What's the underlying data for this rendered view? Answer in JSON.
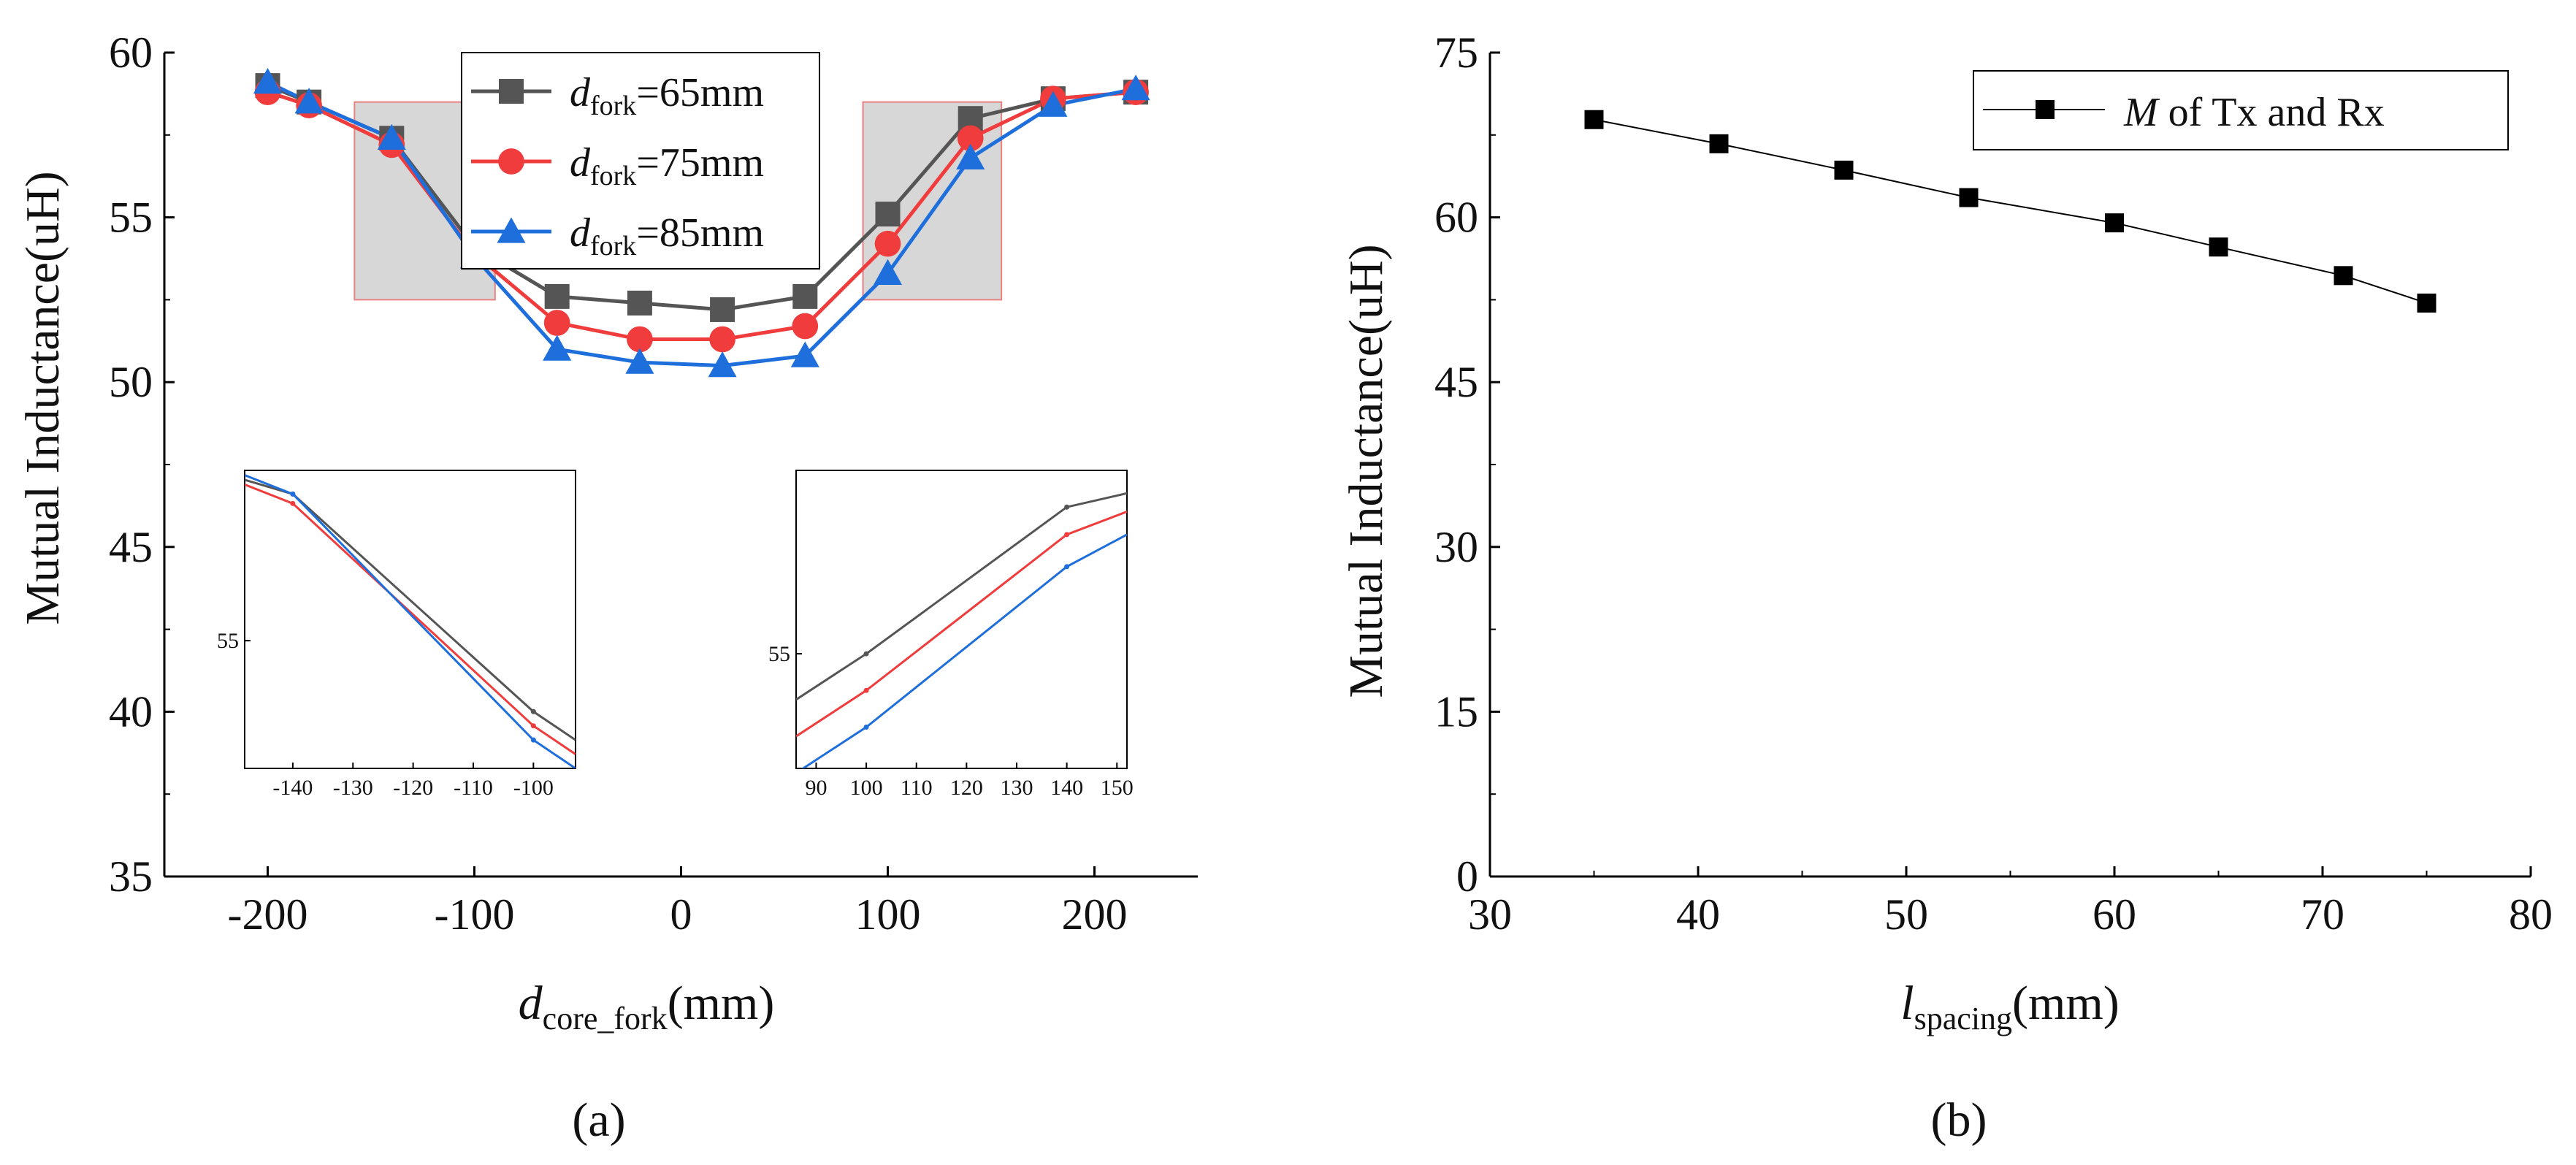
{
  "chart_data": [
    {
      "type": "line",
      "panel_label": "(a)",
      "ylabel": "Mutual Inductance(uH)",
      "xlabel": {
        "base": "d",
        "sub": "core_fork",
        "unit": "(mm)"
      },
      "xlim": [
        -250,
        250
      ],
      "ylim": [
        35,
        60
      ],
      "xticks": [
        -200,
        -100,
        0,
        100,
        200
      ],
      "yticks": [
        35,
        40,
        45,
        50,
        55,
        60
      ],
      "x": [
        -200,
        -180,
        -140,
        -100,
        -60,
        -20,
        20,
        60,
        100,
        140,
        180,
        220
      ],
      "series": [
        {
          "name_base": "d",
          "name_sub": "fork",
          "name_rest": "=65mm",
          "color": "#555555",
          "marker": "square",
          "values": [
            59.0,
            58.5,
            57.4,
            54.1,
            52.6,
            52.4,
            52.2,
            52.6,
            55.1,
            58.0,
            58.6,
            58.8
          ]
        },
        {
          "name_base": "d",
          "name_sub": "fork",
          "name_rest": "=75mm",
          "color": "#f03c3c",
          "marker": "circle",
          "values": [
            58.8,
            58.4,
            57.2,
            53.9,
            51.8,
            51.3,
            51.3,
            51.7,
            54.2,
            57.4,
            58.6,
            58.8
          ]
        },
        {
          "name_base": "d",
          "name_sub": "fork",
          "name_rest": "=85mm",
          "color": "#1e6fdc",
          "marker": "triangle",
          "values": [
            59.1,
            58.5,
            57.4,
            53.8,
            51.0,
            50.6,
            50.5,
            50.8,
            53.3,
            56.8,
            58.4,
            58.9
          ]
        }
      ],
      "highlight_regions": [
        {
          "x": [
            -158,
            -90
          ],
          "y": [
            52.5,
            58.5
          ]
        },
        {
          "x": [
            88,
            155
          ],
          "y": [
            52.5,
            58.5
          ]
        }
      ],
      "insets": [
        {
          "xlim": [
            -148,
            -93
          ],
          "ylim": [
            52.3,
            58.6
          ],
          "xticks": [
            -140,
            -130,
            -120,
            -110,
            -100
          ],
          "ytick": 55,
          "x": [
            -148,
            -140,
            -100,
            -93
          ],
          "series": [
            {
              "color": "#555555",
              "values": [
                58.4,
                58.1,
                53.5,
                52.9
              ]
            },
            {
              "color": "#f03c3c",
              "values": [
                58.3,
                57.9,
                53.2,
                52.6
              ]
            },
            {
              "color": "#1e6fdc",
              "values": [
                58.5,
                58.1,
                52.9,
                52.3
              ]
            }
          ]
        },
        {
          "xlim": [
            86,
            152
          ],
          "ylim": [
            52.5,
            59.0
          ],
          "xticks": [
            90,
            100,
            110,
            120,
            130,
            140,
            150
          ],
          "ytick": 55,
          "x": [
            86,
            100,
            140,
            152
          ],
          "series": [
            {
              "color": "#555555",
              "values": [
                54.0,
                55.0,
                58.2,
                58.5
              ]
            },
            {
              "color": "#f03c3c",
              "values": [
                53.2,
                54.2,
                57.6,
                58.1
              ]
            },
            {
              "color": "#1e6fdc",
              "values": [
                52.4,
                53.4,
                56.9,
                57.6
              ]
            }
          ]
        }
      ]
    },
    {
      "type": "line",
      "panel_label": "(b)",
      "ylabel": "Mutual Inductance(uH)",
      "xlabel": {
        "base": "l",
        "sub": "spacing",
        "unit": "(mm)"
      },
      "xlim": [
        30,
        80
      ],
      "ylim": [
        0,
        75
      ],
      "xticks": [
        30,
        40,
        50,
        60,
        70,
        80
      ],
      "yticks": [
        0,
        15,
        30,
        45,
        60,
        75
      ],
      "x": [
        35,
        41,
        47,
        53,
        60,
        65,
        71,
        75
      ],
      "series": [
        {
          "name_base": "M",
          "name_rest": " of Tx and Rx",
          "color": "#000000",
          "marker": "square",
          "values": [
            68.9,
            66.7,
            64.3,
            61.8,
            59.5,
            57.3,
            54.7,
            52.2
          ]
        }
      ]
    }
  ]
}
